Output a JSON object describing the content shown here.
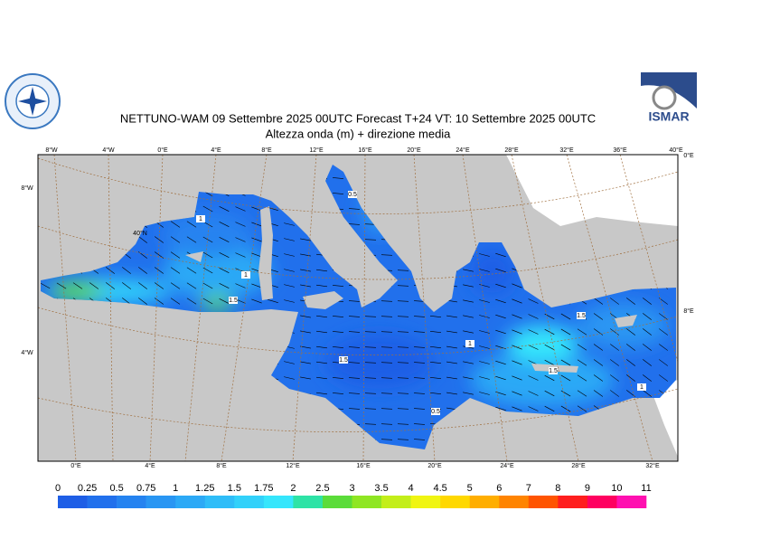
{
  "header": {
    "title": "NETTUNO-WAM  09 Settembre 2025 00UTC Forecast T+24 VT: 10 Settembre 2025 00UTC",
    "subtitle": "Altezza onda (m) + direzione media",
    "logo_right": "ISMAR"
  },
  "map": {
    "top_labels": [
      "8°W",
      "4°W",
      "0°E",
      "4°E",
      "8°E",
      "12°E",
      "16°E",
      "20°E",
      "24°E",
      "28°E",
      "32°E",
      "36°E",
      "40°E"
    ],
    "bottom_labels": [
      "0°E",
      "4°E",
      "8°E",
      "12°E",
      "16°E",
      "20°E",
      "24°E",
      "28°E",
      "32°E"
    ],
    "left_labels": [
      "8°W",
      "4°W"
    ],
    "inner_labels": [
      "40°N",
      "0°E",
      "8°E"
    ],
    "contour_labels": [
      "1",
      "1",
      "1.5",
      "0.5",
      "1",
      "1.5",
      "1.5",
      "1.5",
      "1",
      "0.5"
    ]
  },
  "colorbar": {
    "labels": [
      "0",
      "0.25",
      "0.5",
      "0.75",
      "1",
      "1.25",
      "1.5",
      "1.75",
      "2",
      "2.5",
      "3",
      "3.5",
      "4",
      "4.5",
      "5",
      "6",
      "7",
      "8",
      "9",
      "10",
      "11"
    ],
    "colors": [
      "#1e5ee6",
      "#2170ec",
      "#2583f0",
      "#2996f3",
      "#2ca9f6",
      "#2fbdf8",
      "#32d1fa",
      "#35e6fc",
      "#2ee3a6",
      "#5bdc3a",
      "#8fe623",
      "#c3ee19",
      "#f0f512",
      "#ffd800",
      "#ffae00",
      "#ff8400",
      "#ff5400",
      "#ff1e1e",
      "#ff0060",
      "#ff10b0"
    ]
  }
}
